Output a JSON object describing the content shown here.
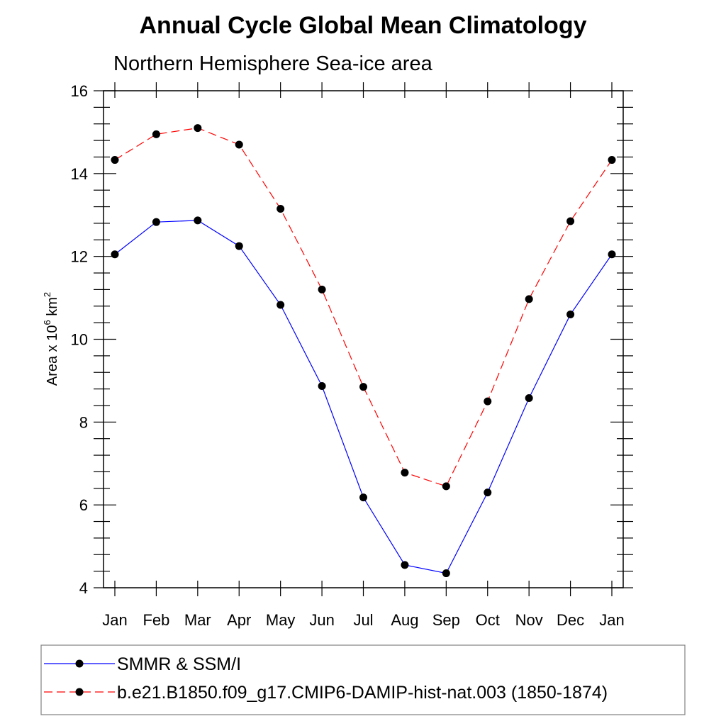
{
  "chart_data": {
    "type": "line",
    "title": "Annual Cycle Global Mean Climatology",
    "subtitle": "Northern Hemisphere Sea-ice area",
    "ylabel": {
      "base": "Area x 10",
      "exp": "6",
      "unit": " km",
      "unit_exp": "2"
    },
    "xlabel": "",
    "categories": [
      "Jan",
      "Feb",
      "Mar",
      "Apr",
      "May",
      "Jun",
      "Jul",
      "Aug",
      "Sep",
      "Oct",
      "Nov",
      "Dec",
      "Jan"
    ],
    "ylim": [
      4,
      16
    ],
    "yticks": [
      4,
      6,
      8,
      10,
      12,
      14,
      16
    ],
    "grid": false,
    "legend_position": "bottom",
    "series": [
      {
        "name": "SMMR & SSM/I",
        "color": "#0000ff",
        "dashed": false,
        "values": [
          12.05,
          12.83,
          12.87,
          12.25,
          10.83,
          8.87,
          6.18,
          4.55,
          4.35,
          6.3,
          8.58,
          10.6,
          12.05
        ]
      },
      {
        "name": "b.e21.B1850.f09_g17.CMIP6-DAMIP-hist-nat.003 (1850-1874)",
        "color": "#ff0000",
        "dashed": true,
        "values": [
          14.33,
          14.95,
          15.1,
          14.7,
          13.15,
          11.2,
          8.85,
          6.78,
          6.45,
          8.5,
          10.97,
          12.85,
          14.33
        ]
      }
    ]
  }
}
